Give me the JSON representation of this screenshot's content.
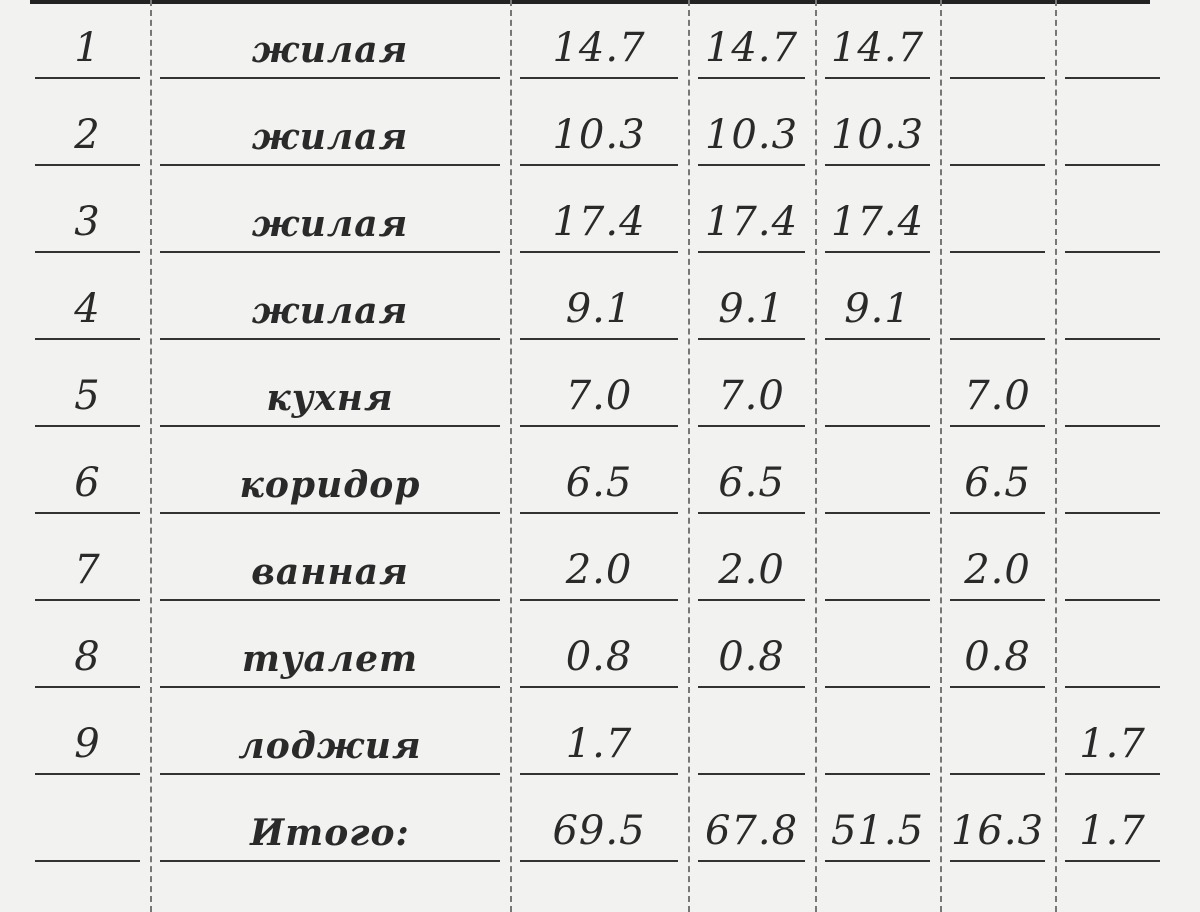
{
  "rows": [
    {
      "n": "1",
      "room": "жилая",
      "cols": [
        "14.7",
        "14.7",
        "14.7",
        "",
        ""
      ]
    },
    {
      "n": "2",
      "room": "жилая",
      "cols": [
        "10.3",
        "10.3",
        "10.3",
        "",
        ""
      ]
    },
    {
      "n": "3",
      "room": "жилая",
      "cols": [
        "17.4",
        "17.4",
        "17.4",
        "",
        ""
      ]
    },
    {
      "n": "4",
      "room": "жилая",
      "cols": [
        "9.1",
        "9.1",
        "9.1",
        "",
        ""
      ]
    },
    {
      "n": "5",
      "room": "кухня",
      "cols": [
        "7.0",
        "7.0",
        "",
        "7.0",
        ""
      ]
    },
    {
      "n": "6",
      "room": "коридор",
      "cols": [
        "6.5",
        "6.5",
        "",
        "6.5",
        ""
      ]
    },
    {
      "n": "7",
      "room": "ванная",
      "cols": [
        "2.0",
        "2.0",
        "",
        "2.0",
        ""
      ]
    },
    {
      "n": "8",
      "room": "туалет",
      "cols": [
        "0.8",
        "0.8",
        "",
        "0.8",
        ""
      ]
    },
    {
      "n": "9",
      "room": "лоджия",
      "cols": [
        "1.7",
        "",
        "",
        "",
        "1.7"
      ]
    },
    {
      "n": "",
      "room": "Итого:",
      "cols": [
        "69.5",
        "67.8",
        "51.5",
        "16.3",
        "1.7"
      ]
    }
  ]
}
